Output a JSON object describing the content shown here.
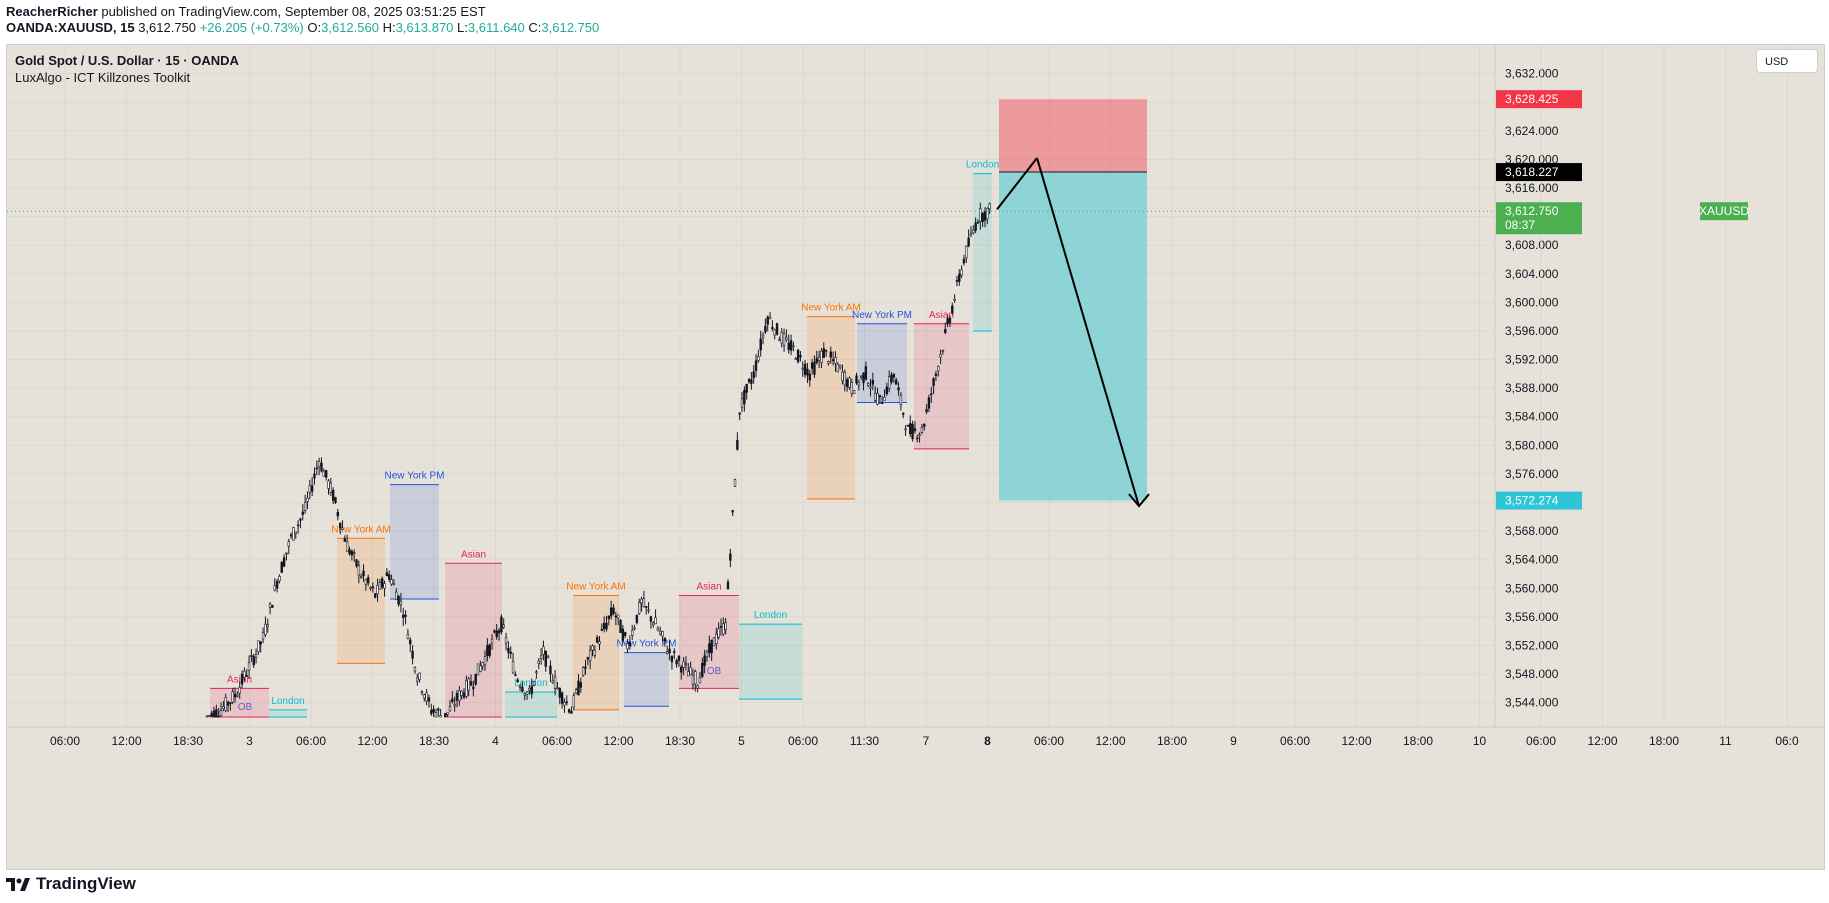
{
  "header": {
    "publisher": "ReacherRicher",
    "published_text": "published on TradingView.com, September 08, 2025 03:51:25 EST",
    "symbol": "OANDA:XAUUSD, 15",
    "last": "3,612.750",
    "change": "+26.205 (+0.73%)",
    "o_label": "O:",
    "o_value": "3,612.560",
    "h_label": "H:",
    "h_value": "3,613.870",
    "l_label": "L:",
    "l_value": "3,611.640",
    "c_label": "C:",
    "c_value": "3,612.750"
  },
  "legend": {
    "symbol_title": "Gold Spot / U.S. Dollar · 15 · OANDA",
    "indicator": "LuxAlgo - ICT Killzones Toolkit"
  },
  "currency": "USD",
  "footer": {
    "brand": "TradingView"
  },
  "colors": {
    "asian": "#e91e63",
    "london": "#00bcd4",
    "ny_am": "#ff6f00",
    "ny_pm": "#1e53e5",
    "stop": "#f23645",
    "target": "#2ec5d6",
    "last_price": "#4caf50"
  },
  "chart_data": {
    "type": "candlestick",
    "title": "Gold Spot / U.S. Dollar · 15 · OANDA",
    "y_axis": {
      "ylim": [
        3542,
        3636
      ],
      "ticks": [
        "3,544.000",
        "3,548.000",
        "3,552.000",
        "3,556.000",
        "3,560.000",
        "3,564.000",
        "3,568.000",
        "3,572.000",
        "3,576.000",
        "3,580.000",
        "3,584.000",
        "3,588.000",
        "3,592.000",
        "3,596.000",
        "3,600.000",
        "3,604.000",
        "3,608.000",
        "3,612.000",
        "3,616.000",
        "3,620.000",
        "3,624.000",
        "3,628.000",
        "3,632.000"
      ]
    },
    "x_axis": {
      "ticks": [
        "06:00",
        "12:00",
        "18:30",
        "3",
        "06:00",
        "12:00",
        "18:30",
        "4",
        "06:00",
        "12:00",
        "18:30",
        "5",
        "06:00",
        "11:30",
        "7",
        "8",
        "06:00",
        "12:00",
        "18:00",
        "9",
        "06:00",
        "12:00",
        "18:00",
        "10",
        "06:00",
        "12:00",
        "18:00",
        "11",
        "06:0"
      ],
      "bold_ticks": [
        "8"
      ]
    },
    "price_tags": [
      {
        "label": "3,628.425",
        "value": 3628.425,
        "color": "#f23645"
      },
      {
        "label": "3,618.227",
        "value": 3618.227,
        "color": "#000000"
      },
      {
        "label": "3,612.750",
        "value": 3612.75,
        "color": "#4caf50",
        "symbol": "XAUUSD",
        "countdown": "08:37"
      },
      {
        "label": "3,572.274",
        "value": 3572.274,
        "color": "#2ec5d6"
      }
    ],
    "position": {
      "entry": 3618.227,
      "stop": 3628.425,
      "target": 3572.274
    },
    "projection": [
      {
        "from": 3613,
        "to": 3620.2
      },
      {
        "from": 3620.2,
        "to": 3571.5
      }
    ],
    "sessions": [
      {
        "name": "Asian",
        "kind": "asian",
        "high": 3546,
        "low": 3542
      },
      {
        "name": "London",
        "kind": "london",
        "high": 3543,
        "low": 3542
      },
      {
        "name": "New York AM",
        "kind": "ny_am",
        "high": 3567,
        "low": 3549.5
      },
      {
        "name": "New York PM",
        "kind": "ny_pm",
        "high": 3574.5,
        "low": 3558.5
      },
      {
        "name": "Asian",
        "kind": "asian",
        "high": 3563.5,
        "low": 3542
      },
      {
        "name": "London",
        "kind": "london",
        "high": 3545.5,
        "low": 3542
      },
      {
        "name": "New York AM",
        "kind": "ny_am",
        "high": 3559,
        "low": 3543
      },
      {
        "name": "New York PM",
        "kind": "ny_pm",
        "high": 3551,
        "low": 3543.5
      },
      {
        "name": "Asian",
        "kind": "asian",
        "high": 3559,
        "low": 3546
      },
      {
        "name": "London",
        "kind": "london",
        "high": 3555,
        "low": 3544.5
      },
      {
        "name": "New York AM",
        "kind": "ny_am",
        "high": 3598,
        "low": 3572.5
      },
      {
        "name": "New York PM",
        "kind": "ny_pm",
        "high": 3597,
        "low": 3586
      },
      {
        "name": "Asian",
        "kind": "asian",
        "high": 3597,
        "low": 3579.5
      },
      {
        "name": "London",
        "kind": "london",
        "high": 3618,
        "low": 3596
      }
    ],
    "ob_labels": [
      "OB",
      "OB"
    ],
    "price_path": [
      3542,
      3543,
      3545,
      3549,
      3553,
      3561,
      3567,
      3571,
      3578,
      3573,
      3566,
      3562,
      3559,
      3562,
      3557,
      3548,
      3543,
      3542,
      3545,
      3547,
      3551,
      3555,
      3548,
      3545,
      3551,
      3546,
      3543,
      3549,
      3553,
      3557,
      3552,
      3558,
      3555,
      3551,
      3549,
      3547,
      3552,
      3555,
      3585,
      3590,
      3598,
      3595,
      3593,
      3590,
      3593,
      3591,
      3588,
      3590,
      3586,
      3590,
      3582,
      3582,
      3590,
      3598,
      3606,
      3612,
      3613
    ]
  }
}
